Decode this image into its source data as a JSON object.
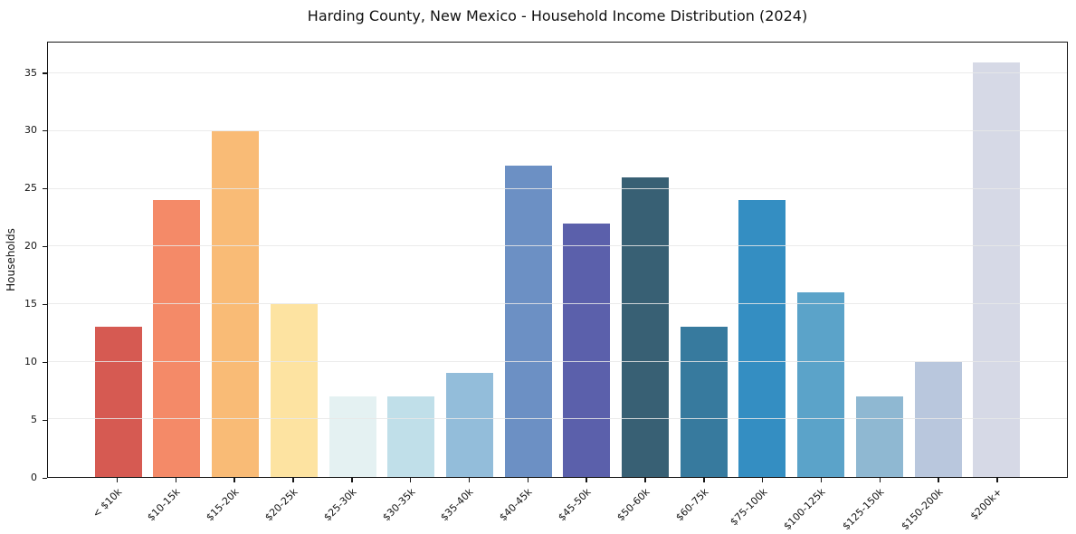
{
  "chart_data": {
    "type": "bar",
    "title": "Harding County, New Mexico - Household Income Distribution (2024)",
    "xlabel": "",
    "ylabel": "Households",
    "categories": [
      "< $10k",
      "$10-15k",
      "$15-20k",
      "$20-25k",
      "$25-30k",
      "$30-35k",
      "$35-40k",
      "$40-45k",
      "$45-50k",
      "$50-60k",
      "$60-75k",
      "$75-100k",
      "$100-125k",
      "$125-150k",
      "$150-200k",
      "$200k+"
    ],
    "values": [
      13,
      24,
      30,
      15,
      7,
      7,
      9,
      27,
      22,
      26,
      13,
      24,
      16,
      7,
      10,
      36
    ],
    "bar_colors": [
      "#d65a52",
      "#f48a68",
      "#f9bb76",
      "#fde3a1",
      "#e4f1f2",
      "#c0dfe9",
      "#93bdda",
      "#6c90c4",
      "#5b60ab",
      "#386074",
      "#377a9e",
      "#348ec2",
      "#5ba3c9",
      "#8fb8d2",
      "#b9c7dd",
      "#d6d9e6"
    ],
    "yticks": [
      0,
      5,
      10,
      15,
      20,
      25,
      30,
      35
    ],
    "ylim": [
      0,
      37.7
    ],
    "grid": "horizontal",
    "gridline_color": "#e7e7e7",
    "spine_color": "#151515",
    "background_color": "#ffffff",
    "xtick_rotation_deg": 45,
    "legend": "none"
  }
}
